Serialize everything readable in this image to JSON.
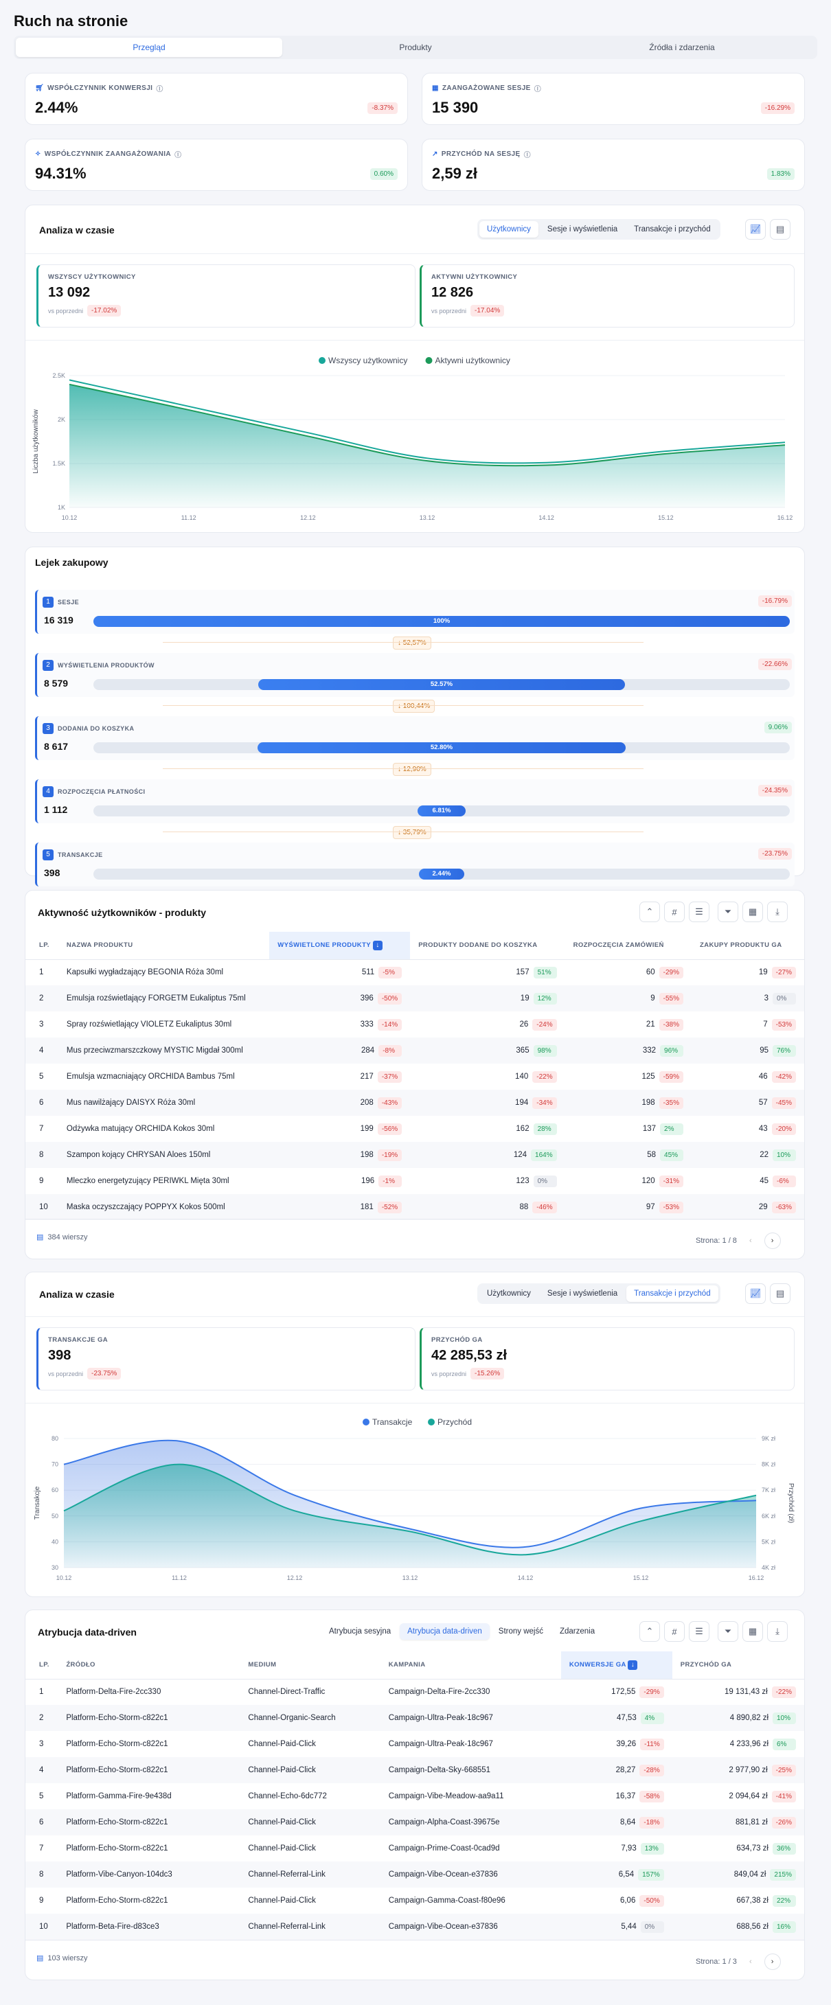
{
  "page_title": "Ruch na stronie",
  "main_tabs": [
    "Przegląd",
    "Produkty",
    "Źródła i zdarzenia"
  ],
  "kpis": [
    {
      "label": "Współczynnik konwersji",
      "value": "2.44%",
      "change": "-8.37%",
      "trend": "down",
      "icon": "cart-icon"
    },
    {
      "label": "Zaangażowane sesje",
      "value": "15 390",
      "change": "-16.29%",
      "trend": "down",
      "icon": "calendar-icon"
    },
    {
      "label": "Współczynnik zaangażowania",
      "value": "94.31%",
      "change": "0.60%",
      "trend": "up",
      "icon": "sparkle-icon"
    },
    {
      "label": "Przychód na sesję",
      "value": "2,59 zł",
      "change": "1.83%",
      "trend": "up",
      "icon": "trending-up-icon"
    }
  ],
  "analysis1": {
    "title": "Analiza w czasie",
    "tabs": [
      "Użytkownicy",
      "Sesje i wyświetlenia",
      "Transakcje i przychód"
    ],
    "metrics": [
      {
        "label": "Wszyscy użytkownicy",
        "value": "13 092",
        "prev": "vs poprzedni",
        "change": "-17.02%"
      },
      {
        "label": "Aktywni użytkownicy",
        "value": "12 826",
        "prev": "vs poprzedni",
        "change": "-17.04%"
      }
    ],
    "legend": [
      "Wszyscy użytkownicy",
      "Aktywni użytkownicy"
    ],
    "ylabel": "Liczba użytkowników",
    "yticks": [
      "2.5K",
      "2K",
      "1.5K",
      "1K"
    ],
    "xticks": [
      "10.12",
      "11.12",
      "12.12",
      "13.12",
      "14.12",
      "15.12",
      "16.12"
    ]
  },
  "chart_data": [
    {
      "type": "area",
      "categories": [
        "10.12",
        "11.12",
        "12.12",
        "13.12",
        "14.12",
        "15.12",
        "16.12"
      ],
      "series": [
        {
          "name": "Wszyscy użytkownicy",
          "values": [
            2450,
            2150,
            1850,
            1560,
            1510,
            1640,
            1740
          ]
        },
        {
          "name": "Aktywni użytkownicy",
          "values": [
            2400,
            2110,
            1810,
            1530,
            1480,
            1610,
            1710
          ]
        }
      ],
      "ylabel": "Liczba użytkowników",
      "ylim": [
        1000,
        2500
      ]
    },
    {
      "type": "area",
      "categories": [
        "10.12",
        "11.12",
        "12.12",
        "13.12",
        "14.12",
        "15.12",
        "16.12"
      ],
      "series": [
        {
          "name": "Transakcje",
          "values": [
            70,
            79,
            58,
            45,
            38,
            53,
            56
          ]
        },
        {
          "name": "Przychód",
          "values": [
            6200,
            8000,
            6200,
            5400,
            4500,
            5800,
            6800
          ]
        }
      ],
      "ylabel": "Transakcje",
      "y2label": "Przychód (zł)",
      "ylim": [
        30,
        80
      ],
      "y2lim": [
        4000,
        9000
      ]
    }
  ],
  "funnel": {
    "title": "Lejek zakupowy",
    "steps": [
      {
        "n": "1",
        "label": "Sesje",
        "value": "16 319",
        "pct": "100%",
        "fill": 100,
        "change": "-16.79%",
        "trend": "down"
      },
      {
        "n": "2",
        "label": "Wyświetlenia produktów",
        "value": "8 579",
        "pct": "52.57%",
        "fill": 52.57,
        "change": "-22.66%",
        "trend": "down",
        "drop": "↓ 52,57%"
      },
      {
        "n": "3",
        "label": "Dodania do koszyka",
        "value": "8 617",
        "pct": "52.80%",
        "fill": 52.8,
        "change": "9.06%",
        "trend": "up",
        "drop": "↓ 100,44%"
      },
      {
        "n": "4",
        "label": "Rozpoczęcia płatności",
        "value": "1 112",
        "pct": "6.81%",
        "fill": 6.81,
        "change": "-24.35%",
        "trend": "down",
        "drop": "↓ 12,90%"
      },
      {
        "n": "5",
        "label": "Transakcje",
        "value": "398",
        "pct": "2.44%",
        "fill": 2.44,
        "change": "-23.75%",
        "trend": "down",
        "drop": "↓ 35,79%"
      }
    ]
  },
  "products": {
    "title": "Aktywność użytkowników - produkty",
    "headers": [
      "LP.",
      "Nazwa produktu",
      "Wyświetlone produkty",
      "Produkty dodane do koszyka",
      "Rozpoczęcia zamówień",
      "Zakupy produktu GA"
    ],
    "rows": [
      [
        "1",
        "Kapsułki wygładzający BEGONIA Róża 30ml",
        "511",
        "-5%",
        "157",
        "51%",
        "60",
        "-29%",
        "19",
        "-27%"
      ],
      [
        "2",
        "Emulsja rozświetlający FORGETM Eukaliptus 75ml",
        "396",
        "-50%",
        "19",
        "12%",
        "9",
        "-55%",
        "3",
        "0%"
      ],
      [
        "3",
        "Spray rozświetlający VIOLETZ Eukaliptus 30ml",
        "333",
        "-14%",
        "26",
        "-24%",
        "21",
        "-38%",
        "7",
        "-53%"
      ],
      [
        "4",
        "Mus przeciwzmarszczkowy MYSTIC Migdał 300ml",
        "284",
        "-8%",
        "365",
        "98%",
        "332",
        "96%",
        "95",
        "76%"
      ],
      [
        "5",
        "Emulsja wzmacniający ORCHIDA Bambus 75ml",
        "217",
        "-37%",
        "140",
        "-22%",
        "125",
        "-59%",
        "46",
        "-42%"
      ],
      [
        "6",
        "Mus nawilżający DAISYX Róża 30ml",
        "208",
        "-43%",
        "194",
        "-34%",
        "198",
        "-35%",
        "57",
        "-45%"
      ],
      [
        "7",
        "Odżywka matujący ORCHIDA Kokos 30ml",
        "199",
        "-56%",
        "162",
        "28%",
        "137",
        "2%",
        "43",
        "-20%"
      ],
      [
        "8",
        "Szampon kojący CHRYSAN Aloes 150ml",
        "198",
        "-19%",
        "124",
        "164%",
        "58",
        "45%",
        "22",
        "10%"
      ],
      [
        "9",
        "Mleczko energetyzujący PERIWKL Mięta 30ml",
        "196",
        "-1%",
        "123",
        "0%",
        "120",
        "-31%",
        "45",
        "-6%"
      ],
      [
        "10",
        "Maska oczyszczający POPPYX Kokos 500ml",
        "181",
        "-52%",
        "88",
        "-46%",
        "97",
        "-53%",
        "29",
        "-63%"
      ]
    ],
    "count": "384 wierszy",
    "page": "Strona: 1 / 8"
  },
  "analysis2": {
    "title": "Analiza w czasie",
    "tabs": [
      "Użytkownicy",
      "Sesje i wyświetlenia",
      "Transakcje i przychód"
    ],
    "metrics": [
      {
        "label": "Transakcje GA",
        "value": "398",
        "prev": "vs poprzedni",
        "change": "-23.75%"
      },
      {
        "label": "Przychód GA",
        "value": "42 285,53 zł",
        "prev": "vs poprzedni",
        "change": "-15.26%"
      }
    ],
    "legend": [
      "Transakcje",
      "Przychód"
    ],
    "ylabel": "Transakcje",
    "y2label": "Przychód (zł)",
    "yticks": [
      "80",
      "70",
      "60",
      "50",
      "40",
      "30"
    ],
    "y2ticks": [
      "9K zł",
      "8K zł",
      "7K zł",
      "6K zł",
      "5K zł",
      "4K zł"
    ],
    "xticks": [
      "10.12",
      "11.12",
      "12.12",
      "13.12",
      "14.12",
      "15.12",
      "16.12"
    ]
  },
  "attribution": {
    "title": "Atrybucja data-driven",
    "tabs": [
      "Atrybucja sesyjna",
      "Atrybucja data-driven",
      "Strony wejść",
      "Zdarzenia"
    ],
    "headers": [
      "LP.",
      "Źródło",
      "Medium",
      "Kampania",
      "Konwersje GA",
      "Przychód GA"
    ],
    "rows": [
      [
        "1",
        "Platform-Delta-Fire-2cc330",
        "Channel-Direct-Traffic",
        "Campaign-Delta-Fire-2cc330",
        "172,55",
        "-29%",
        "19 131,43 zł",
        "-22%"
      ],
      [
        "2",
        "Platform-Echo-Storm-c822c1",
        "Channel-Organic-Search",
        "Campaign-Ultra-Peak-18c967",
        "47,53",
        "4%",
        "4 890,82 zł",
        "10%"
      ],
      [
        "3",
        "Platform-Echo-Storm-c822c1",
        "Channel-Paid-Click",
        "Campaign-Ultra-Peak-18c967",
        "39,26",
        "-11%",
        "4 233,96 zł",
        "6%"
      ],
      [
        "4",
        "Platform-Echo-Storm-c822c1",
        "Channel-Paid-Click",
        "Campaign-Delta-Sky-668551",
        "28,27",
        "-28%",
        "2 977,90 zł",
        "-25%"
      ],
      [
        "5",
        "Platform-Gamma-Fire-9e438d",
        "Channel-Echo-6dc772",
        "Campaign-Vibe-Meadow-aa9a11",
        "16,37",
        "-58%",
        "2 094,64 zł",
        "-41%"
      ],
      [
        "6",
        "Platform-Echo-Storm-c822c1",
        "Channel-Paid-Click",
        "Campaign-Alpha-Coast-39675e",
        "8,64",
        "-18%",
        "881,81 zł",
        "-26%"
      ],
      [
        "7",
        "Platform-Echo-Storm-c822c1",
        "Channel-Paid-Click",
        "Campaign-Prime-Coast-0cad9d",
        "7,93",
        "13%",
        "634,73 zł",
        "36%"
      ],
      [
        "8",
        "Platform-Vibe-Canyon-104dc3",
        "Channel-Referral-Link",
        "Campaign-Vibe-Ocean-e37836",
        "6,54",
        "157%",
        "849,04 zł",
        "215%"
      ],
      [
        "9",
        "Platform-Echo-Storm-c822c1",
        "Channel-Paid-Click",
        "Campaign-Gamma-Coast-f80e96",
        "6,06",
        "-50%",
        "667,38 zł",
        "22%"
      ],
      [
        "10",
        "Platform-Beta-Fire-d83ce3",
        "Channel-Referral-Link",
        "Campaign-Vibe-Ocean-e37836",
        "5,44",
        "0%",
        "688,56 zł",
        "16%"
      ]
    ],
    "count": "103 wierszy",
    "page": "Strona: 1 / 3"
  }
}
